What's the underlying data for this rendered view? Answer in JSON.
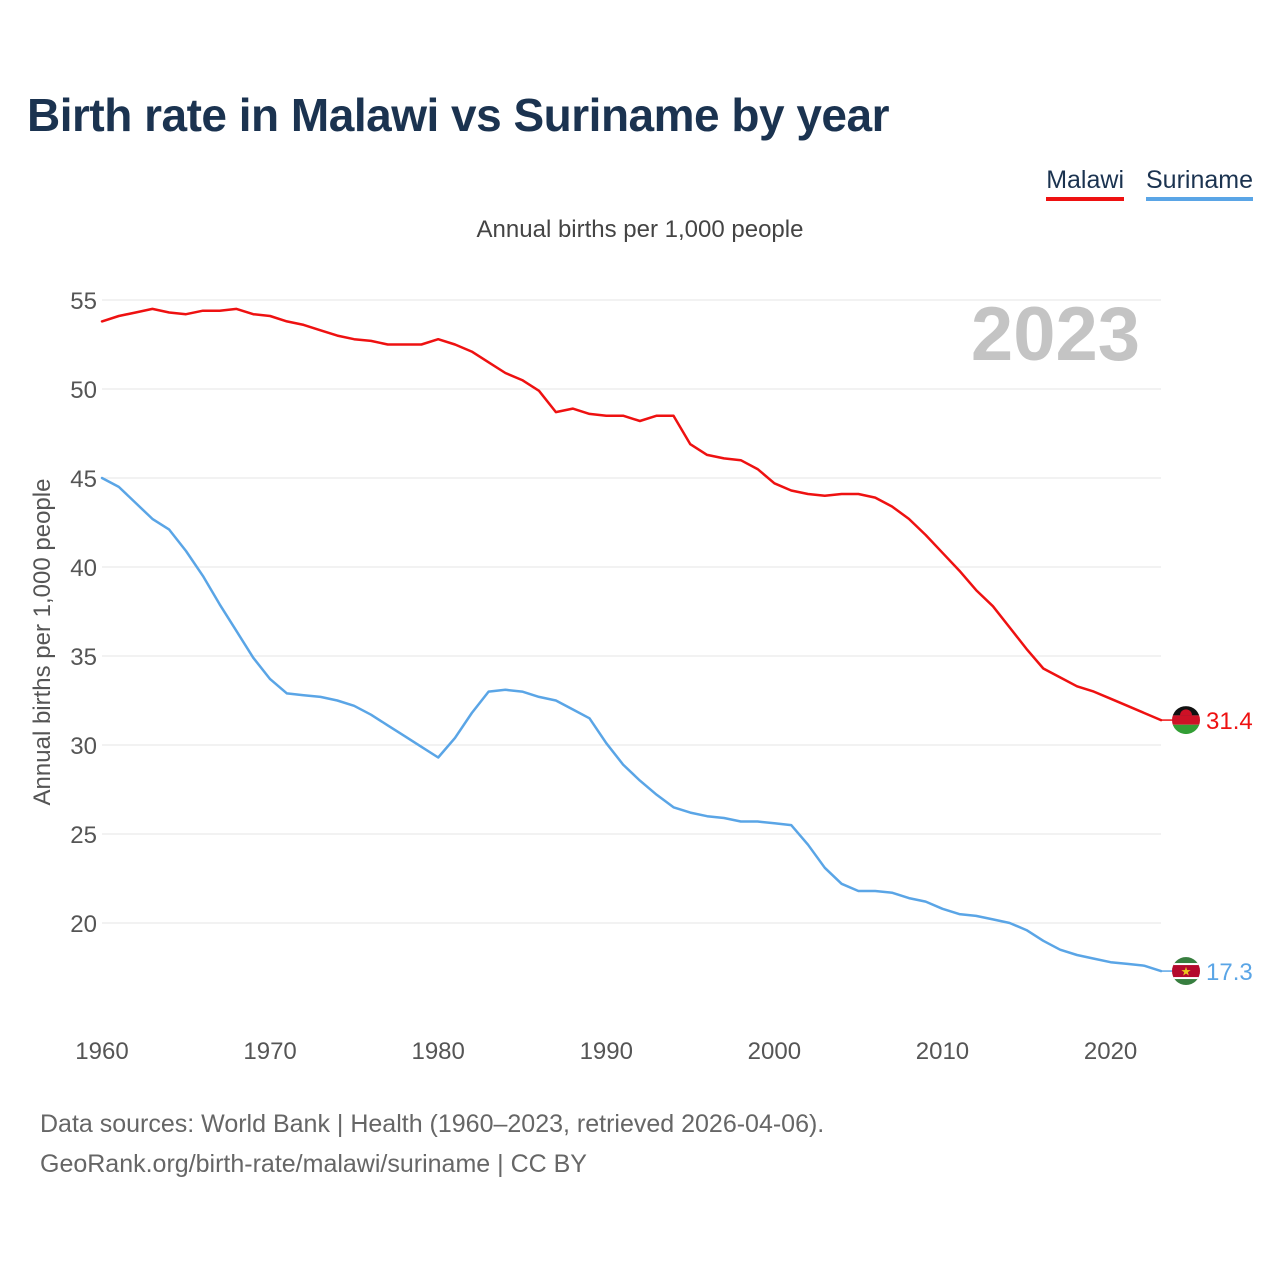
{
  "chart_data": {
    "type": "line",
    "title": "Birth rate in Malawi vs Suriname by year",
    "subtitle": "Annual births per 1,000 people",
    "ylabel": "Annual births per 1,000 people",
    "xlabel": "",
    "year_label": "2023",
    "xlim": [
      1960,
      2023
    ],
    "ylim": [
      15,
      56
    ],
    "x_ticks": [
      1960,
      1970,
      1980,
      1990,
      2000,
      2010,
      2020
    ],
    "y_ticks": [
      20,
      25,
      30,
      35,
      40,
      45,
      50,
      55
    ],
    "grid": true,
    "legend_position": "top-right",
    "x": [
      1960,
      1961,
      1962,
      1963,
      1964,
      1965,
      1966,
      1967,
      1968,
      1969,
      1970,
      1971,
      1972,
      1973,
      1974,
      1975,
      1976,
      1977,
      1978,
      1979,
      1980,
      1981,
      1982,
      1983,
      1984,
      1985,
      1986,
      1987,
      1988,
      1989,
      1990,
      1991,
      1992,
      1993,
      1994,
      1995,
      1996,
      1997,
      1998,
      1999,
      2000,
      2001,
      2002,
      2003,
      2004,
      2005,
      2006,
      2007,
      2008,
      2009,
      2010,
      2011,
      2012,
      2013,
      2014,
      2015,
      2016,
      2017,
      2018,
      2019,
      2020,
      2021,
      2022,
      2023
    ],
    "series": [
      {
        "name": "Malawi",
        "color": "#ee1111",
        "end_label": "31.4",
        "flag": "malawi-flag-icon",
        "values": [
          53.8,
          54.1,
          54.3,
          54.5,
          54.3,
          54.2,
          54.4,
          54.4,
          54.5,
          54.2,
          54.1,
          53.8,
          53.6,
          53.3,
          53.0,
          52.8,
          52.7,
          52.5,
          52.5,
          52.5,
          52.8,
          52.5,
          52.1,
          51.5,
          50.9,
          50.5,
          49.9,
          48.7,
          48.9,
          48.6,
          48.5,
          48.5,
          48.2,
          48.5,
          48.5,
          46.9,
          46.3,
          46.1,
          46.0,
          45.5,
          44.7,
          44.3,
          44.1,
          44.0,
          44.1,
          44.1,
          43.9,
          43.4,
          42.7,
          41.8,
          40.8,
          39.8,
          38.7,
          37.8,
          36.6,
          35.4,
          34.3,
          33.8,
          33.3,
          33.0,
          32.6,
          32.2,
          31.8,
          31.4
        ]
      },
      {
        "name": "Suriname",
        "color": "#5aa5e6",
        "end_label": "17.3",
        "flag": "suriname-flag-icon",
        "values": [
          45.0,
          44.5,
          43.6,
          42.7,
          42.1,
          40.9,
          39.5,
          37.9,
          36.4,
          34.9,
          33.7,
          32.9,
          32.8,
          32.7,
          32.5,
          32.2,
          31.7,
          31.1,
          30.5,
          29.9,
          29.3,
          30.4,
          31.8,
          33.0,
          33.1,
          33.0,
          32.7,
          32.5,
          32.0,
          31.5,
          30.1,
          28.9,
          28.0,
          27.2,
          26.5,
          26.2,
          26.0,
          25.9,
          25.7,
          25.7,
          25.6,
          25.5,
          24.4,
          23.1,
          22.2,
          21.8,
          21.8,
          21.7,
          21.4,
          21.2,
          20.8,
          20.5,
          20.4,
          20.2,
          20.0,
          19.6,
          19.0,
          18.5,
          18.2,
          18.0,
          17.8,
          17.7,
          17.6,
          17.3
        ]
      }
    ]
  },
  "footer": {
    "line1": "Data sources: World Bank | Health (1960–2023, retrieved 2026-04-06).",
    "line2": "GeoRank.org/birth-rate/malawi/suriname | CC BY"
  }
}
